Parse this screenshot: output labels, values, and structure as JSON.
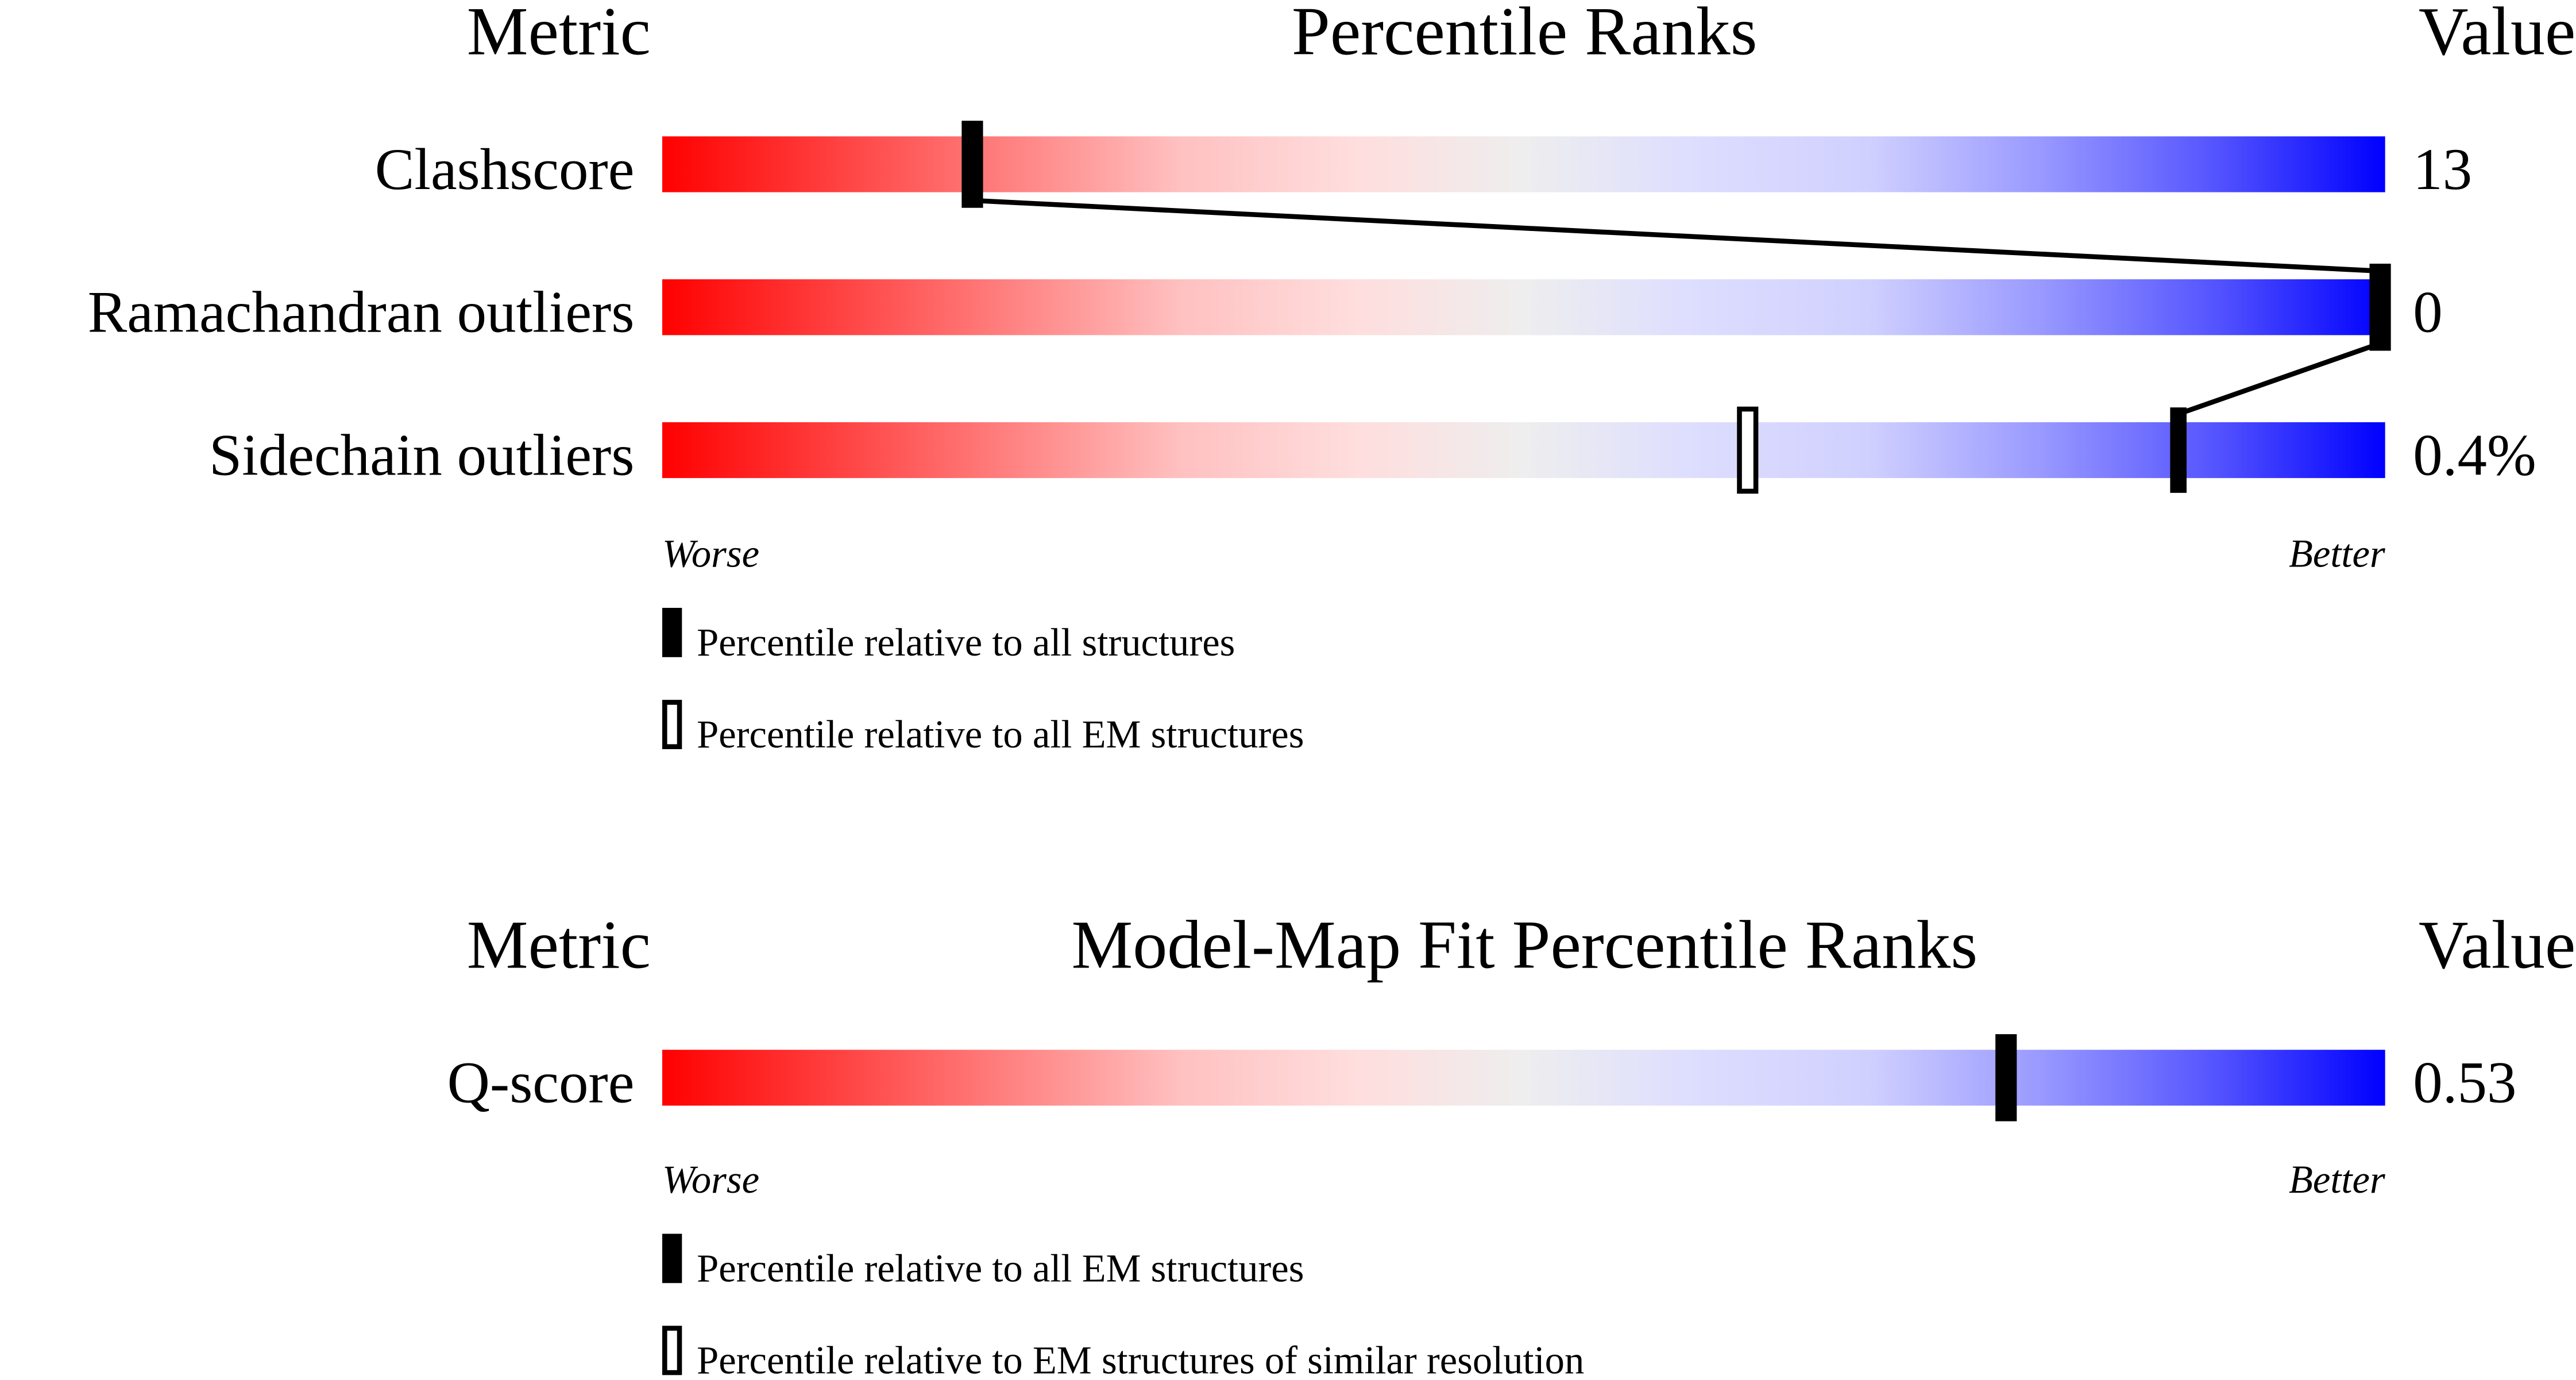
{
  "chart_data": [
    {
      "type": "bar",
      "header_metric": "Metric",
      "title": "Percentile Ranks",
      "header_value": "Value",
      "xlim": [
        0,
        100
      ],
      "worse_label": "Worse",
      "better_label": "Better",
      "rows": [
        {
          "metric": "Clashscore",
          "value": "13",
          "percentile_filled": 18,
          "percentile_open": 18
        },
        {
          "metric": "Ramachandran outliers",
          "value": "0",
          "percentile_filled": 100,
          "percentile_open": 100
        },
        {
          "metric": "Sidechain outliers",
          "value": "0.4%",
          "percentile_filled": 88,
          "percentile_open": 63
        }
      ],
      "legend": [
        {
          "marker": "filled",
          "label": "Percentile relative to all structures"
        },
        {
          "marker": "open",
          "label": "Percentile relative to all EM structures"
        }
      ],
      "connect_filled_markers": true
    },
    {
      "type": "bar",
      "header_metric": "Metric",
      "title": "Model-Map Fit Percentile Ranks",
      "header_value": "Value",
      "xlim": [
        0,
        100
      ],
      "worse_label": "Worse",
      "better_label": "Better",
      "rows": [
        {
          "metric": "Q-score",
          "value": "0.53",
          "percentile_filled": 78,
          "percentile_open": 78
        }
      ],
      "legend": [
        {
          "marker": "filled",
          "label": "Percentile relative to all EM structures"
        },
        {
          "marker": "open",
          "label": "Percentile relative to EM structures of similar resolution"
        }
      ],
      "connect_filled_markers": false
    }
  ],
  "colors": {
    "worse": "#ff0000",
    "mid": "#eeeeee",
    "better": "#0000ff",
    "marker": "#000000"
  }
}
